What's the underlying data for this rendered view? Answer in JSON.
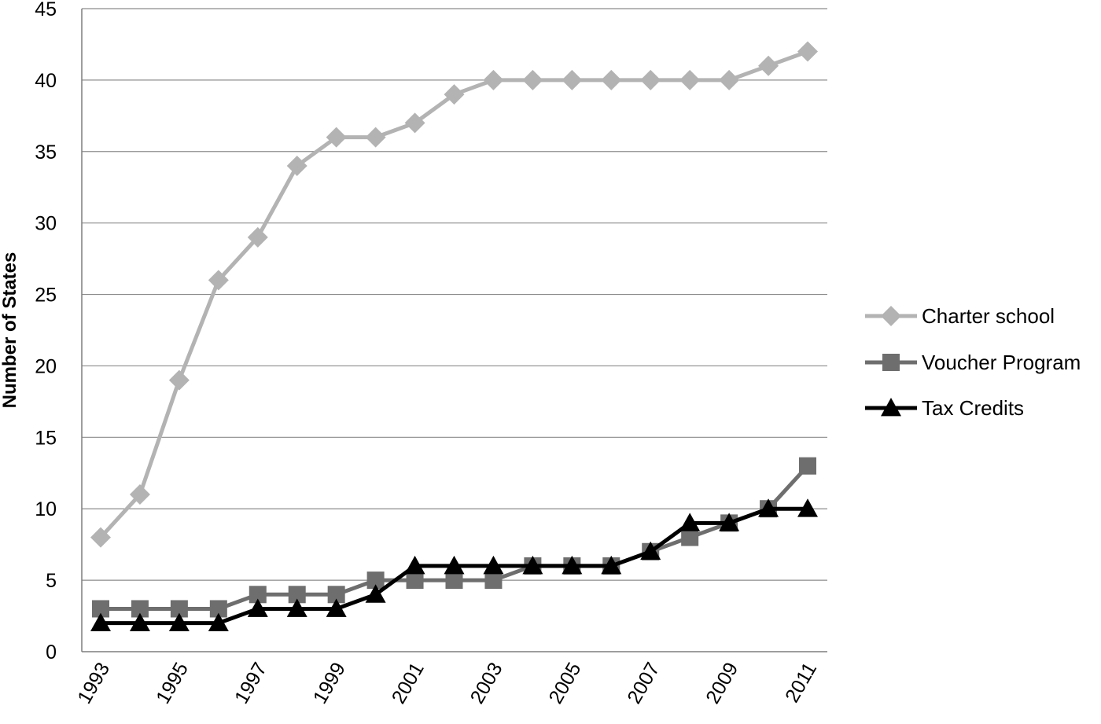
{
  "chart_data": {
    "type": "line",
    "title": "",
    "xlabel": "",
    "ylabel": "Number of States",
    "ylim": [
      0,
      45
    ],
    "yticks": [
      0,
      5,
      10,
      15,
      20,
      25,
      30,
      35,
      40,
      45
    ],
    "x": [
      1993,
      1994,
      1995,
      1996,
      1997,
      1998,
      1999,
      2000,
      2001,
      2002,
      2003,
      2004,
      2005,
      2006,
      2007,
      2008,
      2009,
      2010,
      2011
    ],
    "xtick_labels": [
      "1993",
      "1995",
      "1997",
      "1999",
      "2001",
      "2003",
      "2005",
      "2007",
      "2009",
      "2011"
    ],
    "grid": "horizontal",
    "legend_position": "right",
    "series": [
      {
        "name": "Charter school",
        "marker": "diamond",
        "color": "#b3b3b3",
        "values": [
          8,
          11,
          19,
          26,
          29,
          34,
          36,
          36,
          37,
          39,
          40,
          40,
          40,
          40,
          40,
          40,
          40,
          41,
          42
        ]
      },
      {
        "name": "Voucher Program",
        "marker": "square",
        "color": "#6e6e6e",
        "values": [
          3,
          3,
          3,
          3,
          4,
          4,
          4,
          5,
          5,
          5,
          5,
          6,
          6,
          6,
          7,
          8,
          9,
          10,
          13
        ]
      },
      {
        "name": "Tax Credits",
        "marker": "triangle",
        "color": "#000000",
        "values": [
          2,
          2,
          2,
          2,
          3,
          3,
          3,
          4,
          6,
          6,
          6,
          6,
          6,
          6,
          7,
          9,
          9,
          10,
          10
        ]
      }
    ]
  }
}
